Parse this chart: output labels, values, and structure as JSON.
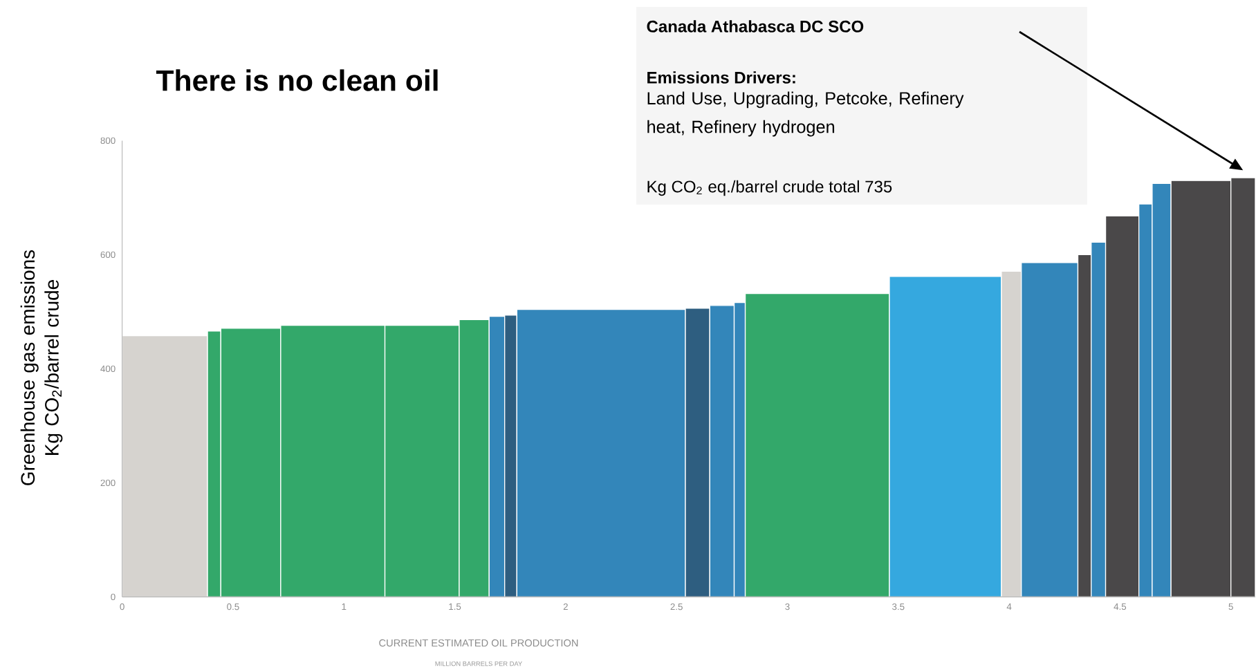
{
  "chart_data": {
    "type": "histogram",
    "title": "There is no clean oil",
    "xlabel": "CURRENT ESTIMATED OIL PRODUCTION",
    "ylabel": "Greenhouse gas emissions Kg CO$_{2}$/barrel crude",
    "bins": [
      0,
      0.385,
      0.445,
      0.715,
      1.185,
      1.52,
      1.655,
      1.725,
      1.78,
      2.54,
      2.65,
      2.76,
      2.81,
      3.46,
      3.965,
      4.055,
      4.31,
      4.37,
      4.435,
      4.585,
      4.645,
      4.73,
      5.0,
      5.11
    ],
    "values": [
      458,
      466,
      471,
      476,
      476,
      486,
      492,
      494,
      504,
      506,
      511,
      516,
      532,
      562,
      571,
      586,
      600,
      622,
      668,
      689,
      725,
      730,
      735
    ],
    "colors": [
      "#d6d3cf",
      "#33a86a",
      "#33a86a",
      "#33a86a",
      "#33a86a",
      "#33a86a",
      "#3386ba",
      "#2e5e80",
      "#3386ba",
      "#2e5e80",
      "#3386ba",
      "#3386ba",
      "#33a86a",
      "#35a8df",
      "#d6d3cf",
      "#3386ba",
      "#4a4849",
      "#3386ba",
      "#4a4849",
      "#3386ba",
      "#3386ba",
      "#4a4849",
      "#4a4849"
    ],
    "xlim": [
      0,
      5.11
    ],
    "ylim": [
      0,
      800
    ],
    "xticks": [
      0,
      0.5,
      1,
      1.5,
      2,
      2.5,
      3,
      3.5,
      4,
      4.5,
      5
    ],
    "yticks": [
      0,
      200,
      400,
      600,
      800
    ],
    "annotations": [
      "Canada Athabasca DC SCO",
      "Emissions Drivers:",
      "Land Use, Upgrading, Petcoke, Refinery heat, Refinery hydrogen",
      "Kg CO$_{2}$ eq./barrel crude   total 735",
      "MILLION BARRELS PER DAY"
    ]
  }
}
